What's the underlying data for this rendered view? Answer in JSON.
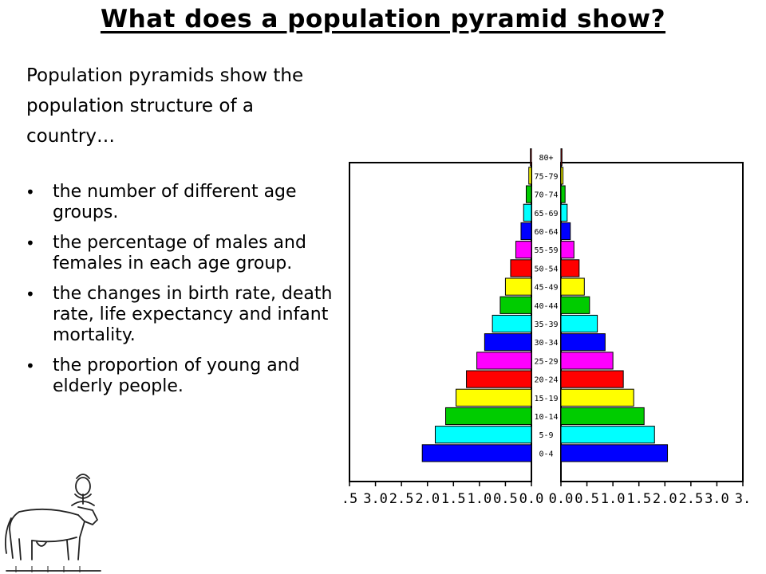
{
  "title": "What does a population pyramid show?",
  "intro": "Population pyramids show the population structure of a country…",
  "bullets": [
    "the number of different age groups.",
    "the percentage of males and females in each age group.",
    "the changes in birth rate, death rate, life expectancy and infant mortality.",
    "the proportion of young and elderly people."
  ],
  "chart_data": {
    "type": "bar",
    "orientation": "horizontal-pyramid",
    "categories": [
      "0-4",
      "5-9",
      "10-14",
      "15-19",
      "20-24",
      "25-29",
      "30-34",
      "35-39",
      "40-44",
      "45-49",
      "50-54",
      "55-59",
      "60-64",
      "65-69",
      "70-74",
      "75-79",
      "80+"
    ],
    "series": [
      {
        "values": [
          2.1,
          1.85,
          1.65,
          1.45,
          1.25,
          1.05,
          0.9,
          0.75,
          0.6,
          0.5,
          0.4,
          0.3,
          0.2,
          0.15,
          0.1,
          0.05,
          0.02
        ]
      },
      {
        "values": [
          2.05,
          1.8,
          1.6,
          1.4,
          1.2,
          1.0,
          0.85,
          0.7,
          0.55,
          0.45,
          0.35,
          0.25,
          0.18,
          0.12,
          0.08,
          0.04,
          0.02
        ]
      }
    ],
    "xticks_left": [
      ".5",
      "3.0",
      "2.5",
      "2.0",
      "1.5",
      "1.0",
      "0.5",
      "0.0"
    ],
    "xticks_right": [
      "0.0",
      "0.5",
      "1.0",
      "1.5",
      "2.0",
      "2.5",
      "3.0",
      "3."
    ],
    "xlim": [
      0,
      3.5
    ],
    "bar_colors": [
      "#0000ff",
      "#00ffff",
      "#00cc00",
      "#ffff00",
      "#ff0000",
      "#ff00ff",
      "#0000ff",
      "#00ffff",
      "#00cc00",
      "#ffff00",
      "#ff0000",
      "#ff00ff",
      "#0000ff",
      "#00ffff",
      "#00cc00",
      "#ffff00",
      "#ff0000"
    ],
    "grid": false
  }
}
